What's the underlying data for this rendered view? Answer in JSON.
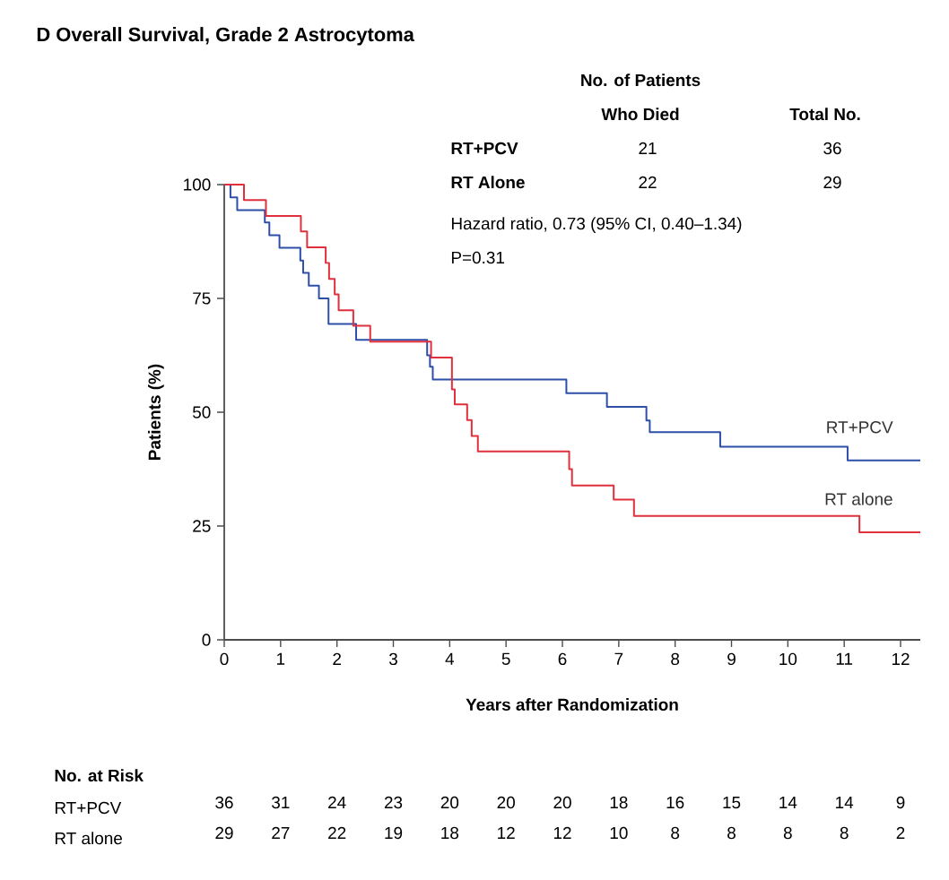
{
  "chart_data": {
    "type": "step",
    "title": "D Overall Survival, Grade 2 Astrocytoma",
    "xlabel": "Years after Randomization",
    "ylabel": "Patients (%)",
    "xlim": [
      0,
      12.35
    ],
    "ylim": [
      0,
      100
    ],
    "xticks": [
      0,
      1,
      2,
      3,
      4,
      5,
      6,
      7,
      8,
      9,
      10,
      11,
      12
    ],
    "yticks": [
      0,
      25,
      50,
      75,
      100
    ],
    "series": [
      {
        "name": "RT+PCV",
        "color": "#2e4fa8",
        "x": [
          0,
          0.11,
          0.23,
          0.72,
          0.8,
          0.98,
          1.35,
          1.4,
          1.5,
          1.68,
          1.85,
          2.34,
          3.6,
          3.65,
          3.7,
          6.07,
          6.79,
          7.49,
          7.55,
          8.8,
          11.06,
          12.35
        ],
        "values": [
          100,
          97.2,
          94.4,
          91.7,
          88.9,
          86.1,
          83.3,
          80.6,
          77.8,
          75,
          69.4,
          65.9,
          62.5,
          60,
          57.2,
          54.2,
          51.2,
          48.2,
          45.6,
          42.4,
          39.4,
          39.4
        ]
      },
      {
        "name": "RT alone",
        "color": "#e0303d",
        "x": [
          0,
          0.35,
          0.74,
          1.36,
          1.47,
          1.8,
          1.86,
          1.96,
          2.03,
          2.29,
          2.59,
          3.67,
          4.04,
          4.09,
          4.31,
          4.39,
          4.5,
          6.12,
          6.17,
          6.91,
          7.27,
          11.27,
          12.35
        ],
        "values": [
          100,
          96.6,
          93.1,
          89.7,
          86.2,
          82.8,
          79.3,
          75.9,
          72.4,
          69,
          65.5,
          62,
          55,
          51.7,
          48.3,
          44.8,
          41.4,
          37.5,
          33.9,
          30.8,
          27.2,
          23.6,
          23.6
        ]
      }
    ],
    "annotations": [
      "No. of Patients",
      "Who Died",
      "Total No.",
      "RT+PCV",
      "21",
      "36",
      "RT Alone",
      "22",
      "29",
      "Hazard ratio, 0.73 (95% CI, 0.40–1.34)",
      "P=0.31",
      "No. at Risk",
      "RT+PCV",
      "36",
      "31",
      "24",
      "23",
      "20",
      "20",
      "20",
      "18",
      "16",
      "15",
      "14",
      "14",
      "9",
      "RT alone",
      "29",
      "27",
      "22",
      "19",
      "18",
      "12",
      "12",
      "10",
      "8",
      "8",
      "8",
      "8",
      "2"
    ]
  }
}
